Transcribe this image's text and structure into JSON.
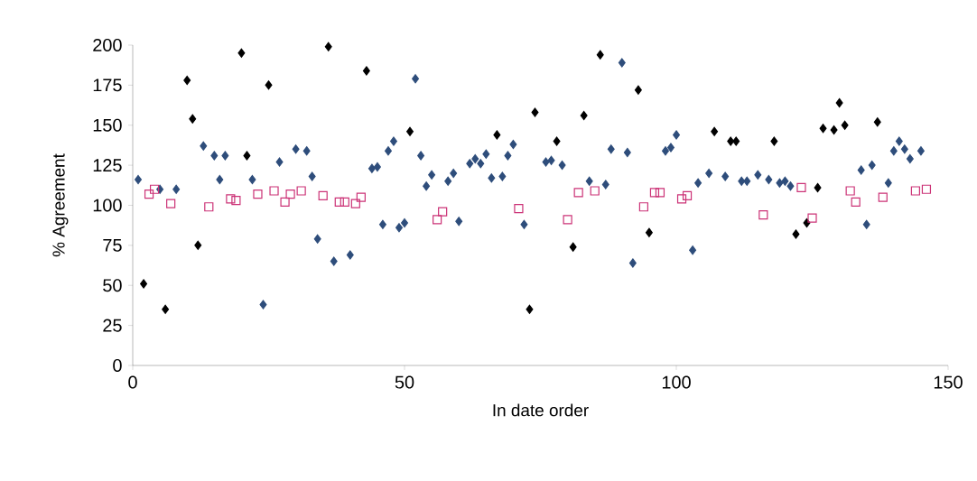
{
  "chart_data": {
    "type": "scatter",
    "xlabel": "In date order",
    "ylabel": "% Agreement",
    "xlim": [
      0,
      150
    ],
    "ylim": [
      0,
      200
    ],
    "xticks": [
      0,
      50,
      100,
      150
    ],
    "yticks": [
      0,
      25,
      50,
      75,
      100,
      125,
      150,
      175,
      200
    ],
    "grid": false,
    "series": [
      {
        "color": "#000000",
        "marker": "diamond",
        "x": [
          2,
          6,
          10,
          11,
          12,
          20,
          21,
          25,
          36,
          43,
          51,
          67,
          74,
          78,
          83,
          86,
          93,
          73,
          81,
          95,
          107,
          110,
          111,
          118,
          126,
          122,
          124,
          127,
          129,
          130,
          131,
          137
        ],
        "values": [
          51,
          35,
          178,
          154,
          75,
          195,
          131,
          175,
          199,
          184,
          146,
          144,
          158,
          140,
          156,
          194,
          172,
          35,
          74,
          83,
          146,
          140,
          140,
          140,
          111,
          82,
          89,
          148,
          147,
          164,
          150,
          152
        ]
      },
      {
        "color": "#2e4d7b",
        "marker": "diamond",
        "x": [
          1,
          5,
          8,
          13,
          15,
          16,
          17,
          22,
          24,
          27,
          30,
          32,
          33,
          34,
          37,
          40,
          44,
          45,
          46,
          47,
          48,
          49,
          50,
          52,
          53,
          54,
          55,
          58,
          59,
          60,
          62,
          63,
          64,
          65,
          66,
          68,
          69,
          70,
          72,
          76,
          77,
          79,
          84,
          87,
          88,
          90,
          91,
          92,
          98,
          99,
          100,
          103,
          104,
          106,
          109,
          112,
          113,
          115,
          117,
          119,
          120,
          121,
          134,
          135,
          136,
          139,
          140,
          141,
          142,
          143,
          145
        ],
        "values": [
          116,
          110,
          110,
          137,
          131,
          116,
          131,
          116,
          38,
          127,
          135,
          134,
          118,
          79,
          65,
          69,
          123,
          124,
          88,
          134,
          140,
          86,
          89,
          179,
          131,
          112,
          119,
          115,
          120,
          90,
          126,
          129,
          126,
          132,
          117,
          118,
          131,
          138,
          88,
          127,
          128,
          125,
          115,
          113,
          135,
          189,
          133,
          64,
          134,
          136,
          144,
          72,
          114,
          120,
          118,
          115,
          115,
          119,
          116,
          114,
          115,
          112,
          122,
          88,
          125,
          114,
          134,
          140,
          135,
          129,
          134
        ]
      },
      {
        "color": "#cc3377",
        "marker": "square",
        "x": [
          3,
          4,
          7,
          14,
          18,
          19,
          23,
          26,
          28,
          29,
          31,
          35,
          38,
          39,
          41,
          42,
          56,
          57,
          71,
          80,
          82,
          85,
          94,
          96,
          97,
          101,
          102,
          116,
          123,
          125,
          132,
          133,
          138,
          144,
          146
        ],
        "values": [
          107,
          110,
          101,
          99,
          104,
          103,
          107,
          109,
          102,
          107,
          109,
          106,
          102,
          102,
          101,
          105,
          91,
          96,
          98,
          91,
          108,
          109,
          99,
          108,
          108,
          104,
          106,
          94,
          111,
          92,
          109,
          102,
          105,
          109,
          110
        ]
      }
    ]
  }
}
